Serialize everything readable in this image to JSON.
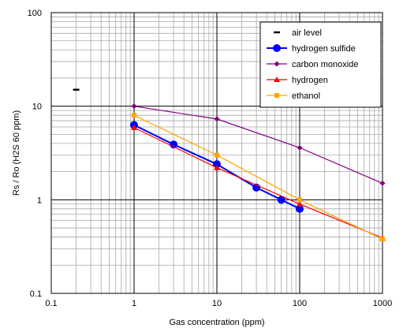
{
  "chart_data": {
    "type": "line",
    "x_scale": "log",
    "y_scale": "log",
    "xlim": [
      0.1,
      1000
    ],
    "ylim": [
      0.1,
      100
    ],
    "x_ticks": [
      "0.1",
      "1",
      "10",
      "100",
      "1000"
    ],
    "y_ticks": [
      "0.1",
      "1",
      "10",
      "100"
    ],
    "xlabel": "Gas concentration (ppm)",
    "ylabel": "Rs / Ro (H2S 60 ppm)",
    "grid": "on (major and minor)",
    "legend_position": "top-right",
    "series": [
      {
        "name": "air level",
        "color": "#000000",
        "marker": "dash",
        "points": [
          [
            0.2,
            15
          ]
        ]
      },
      {
        "name": "hydrogen sulfide",
        "color": "#0000ff",
        "marker": "circle",
        "points": [
          [
            1,
            6.3
          ],
          [
            3,
            3.9
          ],
          [
            10,
            2.4
          ],
          [
            30,
            1.35
          ],
          [
            60,
            1.0
          ],
          [
            100,
            0.8
          ]
        ]
      },
      {
        "name": "carbon monoxide",
        "color": "#800080",
        "marker": "diamond",
        "points": [
          [
            1,
            10
          ],
          [
            10,
            7.3
          ],
          [
            100,
            3.6
          ],
          [
            1000,
            1.5
          ]
        ]
      },
      {
        "name": "hydrogen",
        "color": "#ff0000",
        "marker": "triangle",
        "points": [
          [
            1,
            5.9
          ],
          [
            10,
            2.2
          ],
          [
            100,
            0.9
          ],
          [
            1000,
            0.39
          ]
        ]
      },
      {
        "name": "ethanol",
        "color": "#ffa500",
        "marker": "square",
        "points": [
          [
            1,
            8.0
          ],
          [
            10,
            3.0
          ],
          [
            100,
            1.0
          ],
          [
            1000,
            0.38
          ]
        ]
      }
    ]
  }
}
